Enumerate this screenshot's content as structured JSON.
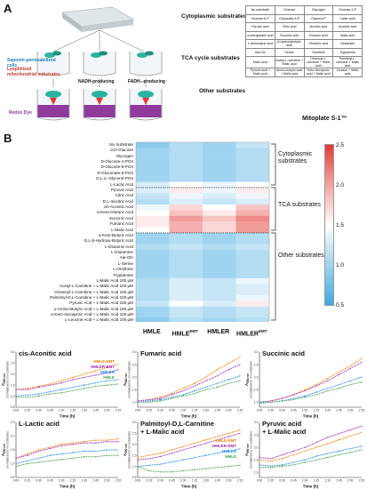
{
  "panelA": {
    "letter": "A",
    "steps": {
      "saponin": "Saponin-permeabilized cells",
      "lyophilized": "Lyophilized mitochondrial substrates",
      "nadh": "NADH-producing",
      "fadh": "FADH₂-producing",
      "redox": "Redox Dye"
    },
    "categories": [
      "Cytoplasmic substrates",
      "TCA cycle substrates",
      "Other substrates"
    ],
    "plate_title": "Mitoplate S-1™",
    "table": [
      [
        "No substrate",
        "Glucose",
        "Glycogen",
        "Glucose-1-P"
      ],
      [
        "Glucose-6-P",
        "Gluconate-6-P",
        "Glycerol-P",
        "Lactic acid"
      ],
      [
        "Pyruvic acid",
        "Citric acid",
        "Isocitric acid",
        "Aconitic acid"
      ],
      [
        "α-ketoglutaric acid",
        "Succinic acid",
        "Fumaric acid",
        "Malic acid"
      ],
      [
        "L-ketobutyric acid",
        "β-hydroxybutyric acid",
        "Glutamic acid",
        "Glutamine"
      ],
      [
        "Ala-Gln",
        "Serine",
        "Ornithine",
        "Tryptamine"
      ],
      [
        "Malic acid",
        "Acetyl-L-carnitine + Malic acid",
        "Octanoyl-L-carnitine + Malic acid",
        "Palmitoyl-L-carnitine + Malic acid"
      ],
      [
        "Pyruvic acid + Malic acid",
        "Amino-butyric acid + Malic acid",
        "Keto-isocaproic acid + Malic acid",
        "Leucine + Malic acid"
      ]
    ]
  },
  "panelB": {
    "letter": "B",
    "row_labels": [
      "No Substrate",
      "α-D-Glucose",
      "Glycogen",
      "D-Glucose-1-PO4",
      "D-Glucose-6-PO4",
      "D-Gluconate-6-PO4",
      "D,L-α -Glycerol-PO4",
      "L-Lactic Acid",
      "Pyruvic Acid",
      "Citric Acid",
      "D,L-Isocitric Acid",
      "cis-Aconitic Acid",
      "α-Keto-Glutaric Acid",
      "Succinic Acid",
      "Fumaric Acid",
      "L-Malic Acid",
      "α-Keto-Butyric Acid",
      "D,L-β-Hydroxy-Butyric Acid",
      "L-Glutamic Acid",
      "L-Glutamine",
      "Ala-Gln",
      "L-Serine",
      "L-Ornithine",
      "Tryptamine",
      "L-Malic Acid 100 µM",
      "Acetyl-L-Carnitine + L-Malic Acid 100 µM",
      "Octanoyl-L-Carnitine + L-Malic Acid 100 µM",
      "Palmitoyl-D,L-Carnitine + L-Malic Acid 100 µM",
      "Pyruvic Acid + L-Malic Acid 100 µM",
      "γ-Amino-Butyric Acid + L-Malic Acid 100 µM",
      "α-Keto-Isocaproic Acid + L-Malic Acid 100 µM",
      "L-Leucine Acid + L-Malic Acid 100 µM"
    ],
    "group_labels": [
      "Cytoplasmic substrates",
      "TCA substrates",
      "Other substrates"
    ],
    "columns": [
      {
        "name": "HMLE",
        "sup": ""
      },
      {
        "name": "HMLE",
        "sup": "EMT"
      },
      {
        "name": "HMLER",
        "sup": ""
      },
      {
        "name": "HMLER",
        "sup": "EMT"
      }
    ],
    "colorbar_ticks": [
      "2.5",
      "2.0",
      "1.5",
      "1.0",
      "0.5"
    ],
    "colors": {
      "low": "#3fa9e0",
      "mid": "#ffffff",
      "high": "#e53935"
    },
    "heatmap_values": [
      [
        0.9,
        1.1,
        1.0,
        1.2
      ],
      [
        1.0,
        1.1,
        1.0,
        1.1
      ],
      [
        1.0,
        1.1,
        1.0,
        1.1
      ],
      [
        1.0,
        1.1,
        1.0,
        1.1
      ],
      [
        1.0,
        1.1,
        1.0,
        1.1
      ],
      [
        1.0,
        1.1,
        1.0,
        1.1
      ],
      [
        1.0,
        1.1,
        1.0,
        1.1
      ],
      [
        1.3,
        1.5,
        1.4,
        1.5
      ],
      [
        1.3,
        1.6,
        1.4,
        1.6
      ],
      [
        1.2,
        1.4,
        1.3,
        1.4
      ],
      [
        1.1,
        1.3,
        1.2,
        1.3
      ],
      [
        1.4,
        1.7,
        1.5,
        1.8
      ],
      [
        1.5,
        1.8,
        1.6,
        1.9
      ],
      [
        1.6,
        2.0,
        1.8,
        2.1
      ],
      [
        1.6,
        1.9,
        1.7,
        2.0
      ],
      [
        1.5,
        1.9,
        1.7,
        2.0
      ],
      [
        1.0,
        1.1,
        1.0,
        1.1
      ],
      [
        1.0,
        1.1,
        1.0,
        1.1
      ],
      [
        1.1,
        1.2,
        1.1,
        1.2
      ],
      [
        1.0,
        1.1,
        1.0,
        1.1
      ],
      [
        1.0,
        1.1,
        1.0,
        1.1
      ],
      [
        1.0,
        1.1,
        1.0,
        1.1
      ],
      [
        1.0,
        1.1,
        1.0,
        1.1
      ],
      [
        1.0,
        1.1,
        1.0,
        1.1
      ],
      [
        1.1,
        1.3,
        1.2,
        1.4
      ],
      [
        1.1,
        1.3,
        1.2,
        1.3
      ],
      [
        1.1,
        1.3,
        1.2,
        1.3
      ],
      [
        1.1,
        1.3,
        1.2,
        1.4
      ],
      [
        1.2,
        1.5,
        1.3,
        1.6
      ],
      [
        1.0,
        1.2,
        1.1,
        1.2
      ],
      [
        1.0,
        1.2,
        1.1,
        1.2
      ],
      [
        0.9,
        1.1,
        1.0,
        1.1
      ]
    ]
  },
  "line_charts": {
    "x_label": "Time (h)",
    "y_label_main": "A",
    "y_label_sub": "590 nm",
    "y_label_note": "(normalized to no-substrate)",
    "x_ticks": [
      "0:00",
      "0:15",
      "0:30",
      "0:45",
      "1:00",
      "1:15",
      "1:30",
      "1:45",
      "2:00",
      "2:15"
    ],
    "series_colors": {
      "HMLE-EMT": "#f57c00",
      "HMLER-EMT": "#9c27b0",
      "HMLER": "#1e88e5",
      "HMLE": "#43a047"
    },
    "charts": [
      {
        "title": "cis-Aconitic acid",
        "title2": "",
        "legend": [
          "HMLE-EMT",
          "HMLER-EMT",
          "HMLER",
          "HMLE"
        ],
        "y_ticks": [
          "3.0",
          "2.5",
          "2.0",
          "1.5",
          "1.0",
          "0.5"
        ],
        "y_range": [
          0.5,
          3.0
        ],
        "series": {
          "HMLE-EMT": [
            1.3,
            1.35,
            1.45,
            1.55,
            1.7,
            1.85,
            2.0,
            2.15,
            2.3,
            2.45
          ],
          "HMLER-EMT": [
            1.3,
            1.3,
            1.4,
            1.5,
            1.6,
            1.75,
            1.85,
            1.95,
            2.05,
            2.2
          ],
          "HMLER": [
            1.0,
            1.05,
            1.1,
            1.2,
            1.3,
            1.4,
            1.5,
            1.6,
            1.7,
            1.75
          ],
          "HMLE": [
            0.95,
            0.95,
            1.0,
            1.1,
            1.15,
            1.25,
            1.35,
            1.45,
            1.5,
            1.55
          ]
        }
      },
      {
        "title": "Fumaric acid",
        "title2": "",
        "legend": [],
        "y_ticks": [
          "3.0",
          "2.5",
          "2.0",
          "1.5",
          "1.0"
        ],
        "y_range": [
          0.8,
          3.0
        ],
        "series": {
          "HMLE-EMT": [
            1.05,
            1.1,
            1.2,
            1.35,
            1.55,
            1.75,
            2.0,
            2.3,
            2.55,
            2.8
          ],
          "HMLER-EMT": [
            1.05,
            1.1,
            1.15,
            1.3,
            1.45,
            1.65,
            1.85,
            2.05,
            2.3,
            2.5
          ],
          "HMLER": [
            1.0,
            1.05,
            1.1,
            1.2,
            1.3,
            1.45,
            1.6,
            1.75,
            1.9,
            2.05
          ],
          "HMLE": [
            1.0,
            1.0,
            1.05,
            1.15,
            1.25,
            1.35,
            1.5,
            1.6,
            1.75,
            1.85
          ]
        }
      },
      {
        "title": "Succinic acid",
        "title2": "",
        "legend": [],
        "y_ticks": [
          "3.0",
          "2.5",
          "2.0",
          "1.5",
          "1.0"
        ],
        "y_range": [
          0.8,
          3.0
        ],
        "series": {
          "HMLE-EMT": [
            1.0,
            1.05,
            1.15,
            1.3,
            1.5,
            1.7,
            1.95,
            2.2,
            2.45,
            2.75
          ],
          "HMLER-EMT": [
            1.0,
            1.05,
            1.15,
            1.3,
            1.45,
            1.65,
            1.85,
            2.1,
            2.35,
            2.6
          ],
          "HMLER": [
            1.0,
            1.0,
            1.05,
            1.15,
            1.25,
            1.4,
            1.55,
            1.7,
            1.85,
            2.0
          ],
          "HMLE": [
            0.95,
            1.0,
            1.05,
            1.1,
            1.2,
            1.3,
            1.45,
            1.55,
            1.7,
            1.8
          ]
        }
      },
      {
        "title": "L-Lactic acid",
        "title2": "",
        "legend": [],
        "y_ticks": [
          "2.5",
          "2.0",
          "1.5",
          "1.0",
          "0.5"
        ],
        "y_range": [
          0.5,
          2.5
        ],
        "series": {
          "HMLE-EMT": [
            1.2,
            1.35,
            1.5,
            1.6,
            1.7,
            1.75,
            1.8,
            1.85,
            1.85,
            1.9
          ],
          "HMLER-EMT": [
            1.2,
            1.3,
            1.45,
            1.55,
            1.65,
            1.7,
            1.75,
            1.75,
            1.8,
            1.8
          ],
          "HMLER": [
            1.0,
            1.1,
            1.2,
            1.3,
            1.35,
            1.4,
            1.45,
            1.45,
            1.5,
            1.5
          ],
          "HMLE": [
            0.9,
            1.0,
            1.05,
            1.1,
            1.15,
            1.2,
            1.25,
            1.25,
            1.3,
            1.3
          ]
        }
      },
      {
        "title": "Palmitoyl-D,L-Carnitine",
        "title2": "+ L-Malic acid",
        "legend": [
          "HMLE-EMT",
          "HMLER-EMT",
          "HMLER",
          "HMLE"
        ],
        "y_ticks": [
          "3.0",
          "2.5",
          "2.0",
          "1.5",
          "1.0",
          "0.5"
        ],
        "y_range": [
          0.5,
          3.0
        ],
        "series": {
          "HMLE-EMT": [
            1.4,
            1.5,
            1.6,
            1.75,
            1.9,
            2.05,
            2.2,
            2.35,
            2.5,
            2.65
          ],
          "HMLER-EMT": [
            1.3,
            1.35,
            1.45,
            1.6,
            1.75,
            1.9,
            2.05,
            2.2,
            2.35,
            2.5
          ],
          "HMLER": [
            1.0,
            1.05,
            1.1,
            1.2,
            1.3,
            1.4,
            1.5,
            1.6,
            1.7,
            1.8
          ],
          "HMLE": [
            1.0,
            0.8,
            0.75,
            0.75,
            0.8,
            0.85,
            0.9,
            0.95,
            1.0,
            1.05
          ]
        }
      },
      {
        "title": "Pyruvic acid",
        "title2": "+ L-Malic acid",
        "legend": [],
        "y_ticks": [
          "3.0",
          "2.5",
          "2.0",
          "1.5",
          "1.0"
        ],
        "y_range": [
          0.8,
          3.0
        ],
        "series": {
          "HMLE-EMT": [
            1.5,
            1.45,
            1.55,
            1.7,
            1.85,
            2.0,
            2.15,
            2.3,
            2.45,
            2.6
          ],
          "HMLER-EMT": [
            1.6,
            1.55,
            1.7,
            1.85,
            2.0,
            2.2,
            2.4,
            2.55,
            2.7,
            2.85
          ],
          "HMLER": [
            1.3,
            1.25,
            1.3,
            1.4,
            1.5,
            1.65,
            1.75,
            1.85,
            1.95,
            2.05
          ],
          "HMLE": [
            1.2,
            1.2,
            1.25,
            1.3,
            1.4,
            1.5,
            1.6,
            1.7,
            1.8,
            1.9
          ]
        }
      }
    ]
  }
}
